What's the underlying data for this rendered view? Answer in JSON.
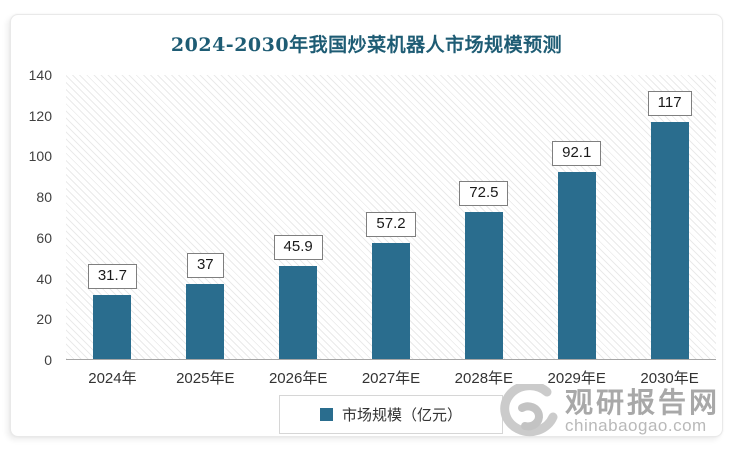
{
  "chart_data": {
    "type": "bar",
    "title": "2024-2030年我国炒菜机器人市场规模预测",
    "categories": [
      "2024年",
      "2025年E",
      "2026年E",
      "2027年E",
      "2028年E",
      "2029年E",
      "2030年E"
    ],
    "values": [
      31.7,
      37,
      45.9,
      57.2,
      72.5,
      92.1,
      117
    ],
    "series_name": "市场规模（亿元）",
    "xlabel": "",
    "ylabel": "",
    "ylim": [
      0,
      140
    ],
    "yticks": [
      0,
      20,
      40,
      60,
      80,
      100,
      120,
      140
    ],
    "grid": false,
    "plot_background": "diagonal-hatch",
    "value_labels_shown": true,
    "legend_position": "bottom"
  },
  "legend": {
    "label": "市场规模（亿元）"
  },
  "watermark": {
    "site_name": "观研报告网",
    "site_domain": "chinabaogao.com"
  },
  "colors": {
    "title": "#1E5C74",
    "bar": "#2A6D8E",
    "axis_text": "#404040",
    "baseline": "#a6a6a6",
    "watermark_text": "#a8a8a8"
  }
}
